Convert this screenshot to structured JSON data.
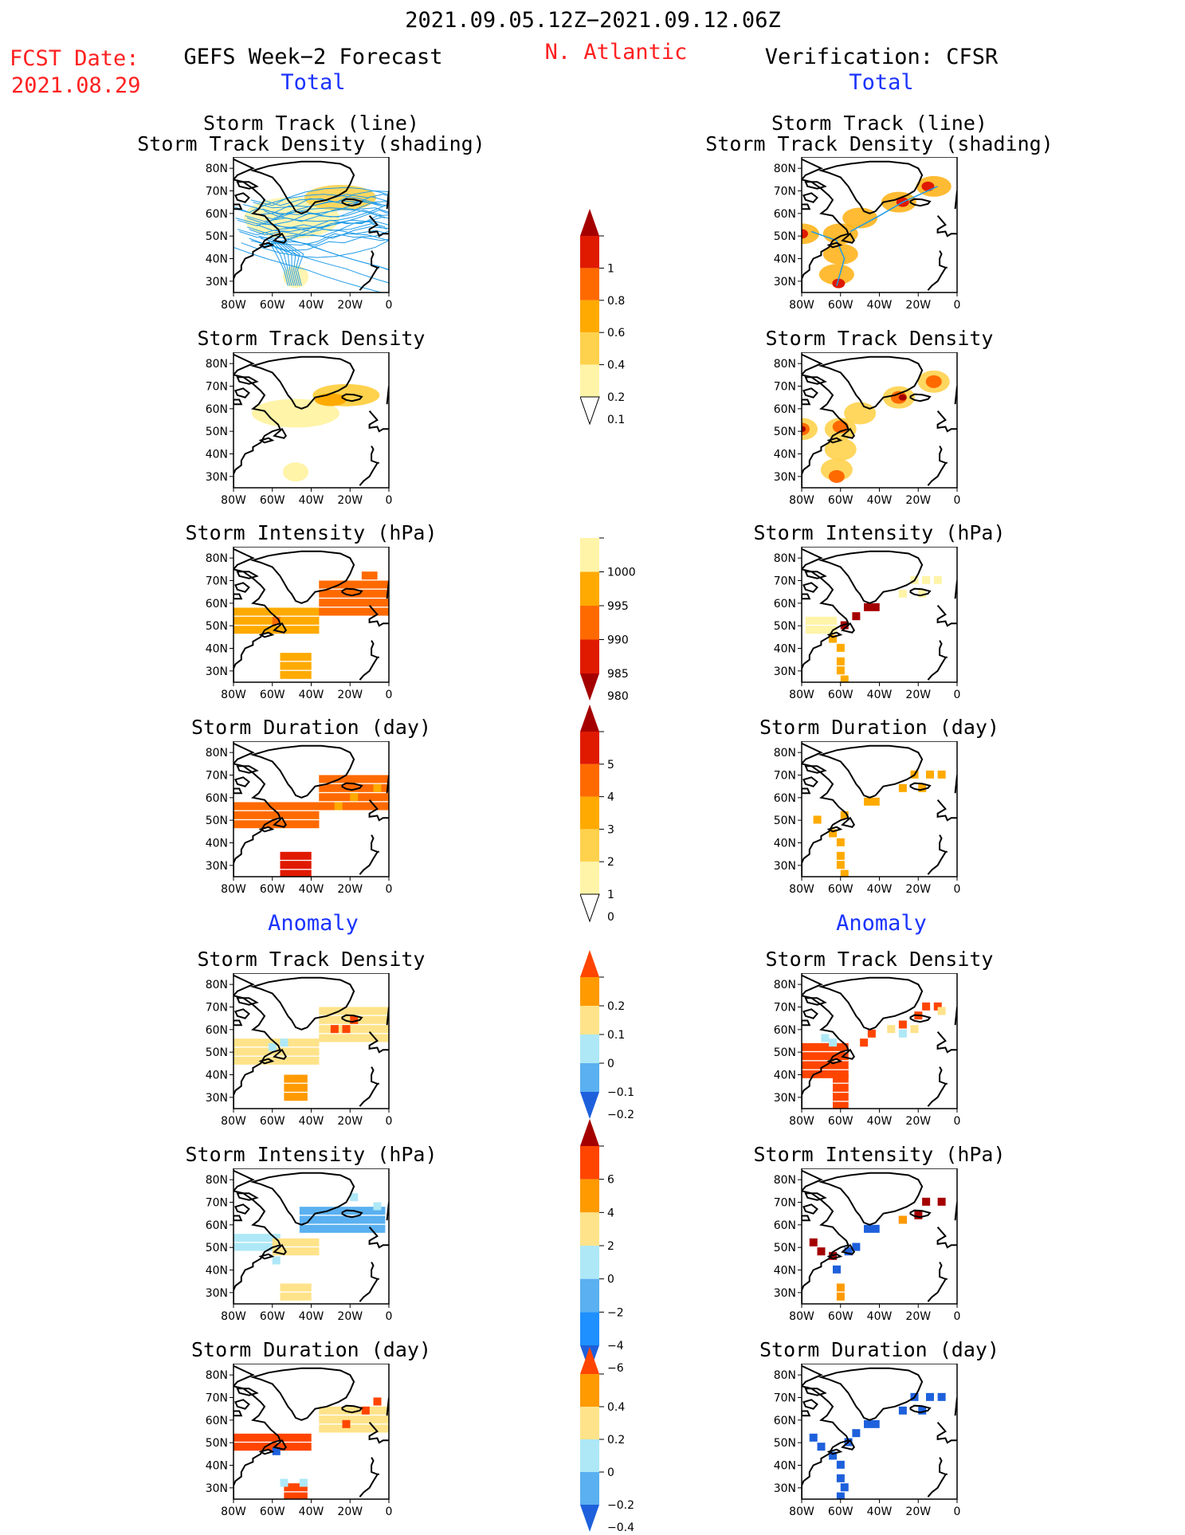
{
  "header": {
    "period": "2021.09.05.12Z−2021.09.12.06Z",
    "fcst_label": "FCST Date:",
    "fcst_date": "2021.08.29",
    "forecast_title": "GEFS Week−2 Forecast",
    "region": "N. Atlantic",
    "verification_title": "Verification: CFSR",
    "total_label": "Total",
    "anomaly_label": "Anomaly"
  },
  "panel_titles": {
    "track": [
      "Storm Track (line)",
      "Storm Track Density (shading)"
    ],
    "density": "Storm Track Density",
    "intensity": "Storm Intensity (hPa)",
    "duration": "Storm Duration (day)"
  },
  "axes": {
    "lat_ticks": [
      "80N",
      "70N",
      "60N",
      "50N",
      "40N",
      "30N"
    ],
    "lon_ticks": [
      "80W",
      "60W",
      "40W",
      "20W",
      "0"
    ]
  },
  "colorbars": [
    {
      "id": "density",
      "labels": [
        "1",
        "0.8",
        "0.6",
        "0.4",
        "0.2",
        "0.1"
      ],
      "colors": [
        "#a50000",
        "#e01a00",
        "#ff6a00",
        "#ffaa00",
        "#ffd24d",
        "#fff4a8",
        "#ffffff"
      ]
    },
    {
      "id": "intensity",
      "labels": [
        "1000",
        "995",
        "990",
        "985",
        "980"
      ],
      "colors": [
        "#ffffff",
        "#fff4a8",
        "#ffaa00",
        "#ff6a00",
        "#e01a00",
        "#a50000"
      ]
    },
    {
      "id": "duration",
      "labels": [
        "5",
        "4",
        "3",
        "2",
        "1",
        "0"
      ],
      "colors": [
        "#a50000",
        "#e01a00",
        "#ff6a00",
        "#ffaa00",
        "#ffd24d",
        "#fff4a8",
        "#ffffff"
      ]
    },
    {
      "id": "anom-density",
      "labels": [
        "0.2",
        "0.1",
        "0",
        "−0.1",
        "−0.2"
      ],
      "colors": [
        "#ff4500",
        "#ff9a00",
        "#ffe38a",
        "#aee8f7",
        "#5ab0f0",
        "#1e60dc"
      ]
    },
    {
      "id": "anom-intensity",
      "labels": [
        "6",
        "4",
        "2",
        "0",
        "−2",
        "−4",
        "−6"
      ],
      "colors": [
        "#a50000",
        "#ff4500",
        "#ff9a00",
        "#ffe38a",
        "#aee8f7",
        "#5ab0f0",
        "#1e90ff",
        "#1e60dc"
      ]
    },
    {
      "id": "anom-duration",
      "labels": [
        "0.4",
        "0.2",
        "0",
        "−0.2",
        "−0.4"
      ],
      "colors": [
        "#ff4500",
        "#ff9a00",
        "#ffe38a",
        "#aee8f7",
        "#5ab0f0",
        "#1e60dc"
      ]
    }
  ]
}
